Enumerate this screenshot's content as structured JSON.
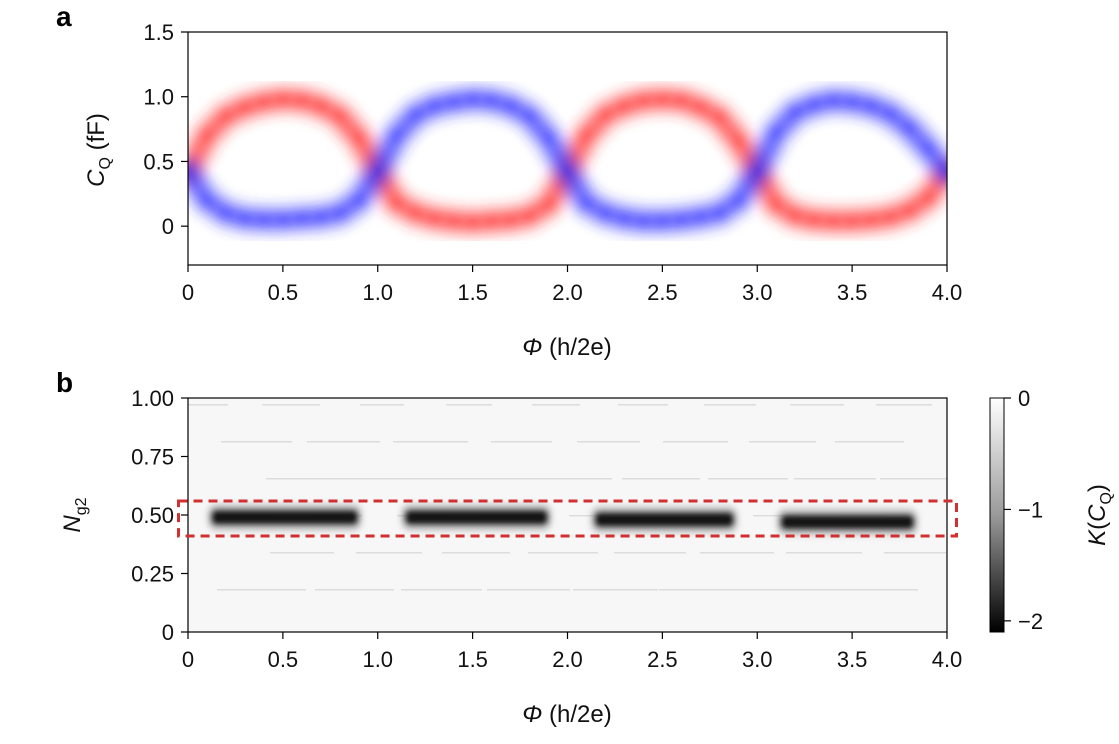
{
  "chart_data": [
    {
      "panel": "a",
      "type": "heatmap",
      "title": "",
      "xlabel_symbol": "Φ",
      "xlabel_unit": " (h/2e)",
      "ylabel_symbol": "C",
      "ylabel_subscript": "Q",
      "ylabel_unit": " (fF)",
      "xlim": [
        0,
        4.0
      ],
      "ylim": [
        -0.3,
        1.5
      ],
      "xticks": [
        "0",
        "0.5",
        "1.0",
        "1.5",
        "2.0",
        "2.5",
        "3.0",
        "3.5",
        "4.0"
      ],
      "xtick_values": [
        0,
        0.5,
        1.0,
        1.5,
        2.0,
        2.5,
        3.0,
        3.5,
        4.0
      ],
      "yticks": [
        "0",
        "0.5",
        "1.0",
        "1.5"
      ],
      "ytick_values": [
        0,
        0.5,
        1.0,
        1.5
      ],
      "series": [
        {
          "name": "red branch",
          "color": "#ff2a2a",
          "x": [
            0,
            0.1,
            0.2,
            0.3,
            0.4,
            0.5,
            0.6,
            0.7,
            0.8,
            0.9,
            1.0,
            1.1,
            1.2,
            1.3,
            1.4,
            1.5,
            1.6,
            1.7,
            1.8,
            1.9,
            2.0,
            2.1,
            2.2,
            2.3,
            2.4,
            2.5,
            2.6,
            2.7,
            2.8,
            2.9,
            3.0,
            3.1,
            3.2,
            3.3,
            3.4,
            3.5,
            3.6,
            3.7,
            3.8,
            3.9,
            4.0
          ],
          "y": [
            0.42,
            0.7,
            0.85,
            0.92,
            0.96,
            0.98,
            0.97,
            0.93,
            0.85,
            0.68,
            0.42,
            0.18,
            0.1,
            0.06,
            0.04,
            0.03,
            0.04,
            0.05,
            0.08,
            0.17,
            0.42,
            0.7,
            0.86,
            0.93,
            0.97,
            0.98,
            0.97,
            0.92,
            0.84,
            0.66,
            0.42,
            0.17,
            0.08,
            0.05,
            0.04,
            0.04,
            0.05,
            0.07,
            0.12,
            0.22,
            0.42
          ]
        },
        {
          "name": "blue branch",
          "color": "#2a2aff",
          "x": [
            0,
            0.1,
            0.2,
            0.3,
            0.4,
            0.5,
            0.6,
            0.7,
            0.8,
            0.9,
            1.0,
            1.1,
            1.2,
            1.3,
            1.4,
            1.5,
            1.6,
            1.7,
            1.8,
            1.9,
            2.0,
            2.1,
            2.2,
            2.3,
            2.4,
            2.5,
            2.6,
            2.7,
            2.8,
            2.9,
            3.0,
            3.1,
            3.2,
            3.3,
            3.4,
            3.5,
            3.6,
            3.7,
            3.8,
            3.9,
            4.0
          ],
          "y": [
            0.42,
            0.2,
            0.1,
            0.06,
            0.05,
            0.05,
            0.06,
            0.07,
            0.1,
            0.2,
            0.42,
            0.7,
            0.86,
            0.93,
            0.96,
            0.98,
            0.97,
            0.93,
            0.85,
            0.68,
            0.42,
            0.18,
            0.1,
            0.06,
            0.04,
            0.04,
            0.05,
            0.07,
            0.1,
            0.2,
            0.42,
            0.72,
            0.88,
            0.94,
            0.97,
            0.96,
            0.93,
            0.87,
            0.76,
            0.6,
            0.42
          ]
        }
      ]
    },
    {
      "panel": "b",
      "type": "heatmap",
      "title": "",
      "xlabel_symbol": "Φ",
      "xlabel_unit": " (h/2e)",
      "ylabel_symbol": "N",
      "ylabel_subscript": "g2",
      "xlim": [
        0,
        4.0
      ],
      "ylim": [
        0,
        1.0
      ],
      "xticks": [
        "0",
        "0.5",
        "1.0",
        "1.5",
        "2.0",
        "2.5",
        "3.0",
        "3.5",
        "4.0"
      ],
      "xtick_values": [
        0,
        0.5,
        1.0,
        1.5,
        2.0,
        2.5,
        3.0,
        3.5,
        4.0
      ],
      "yticks": [
        "0",
        "0.25",
        "0.50",
        "0.75",
        "1.00"
      ],
      "ytick_values": [
        0,
        0.25,
        0.5,
        0.75,
        1.0
      ],
      "colorbar": {
        "label_symbol": "K",
        "label_inner": "C",
        "label_subscript": "Q",
        "range": [
          -2.1,
          0
        ],
        "ticks": [
          "0",
          "−1",
          "−2"
        ],
        "tick_values": [
          0,
          -1,
          -2
        ]
      },
      "dark_segments": [
        {
          "x_start": 0.1,
          "x_end": 0.92,
          "ng2": 0.49,
          "K": -1.9
        },
        {
          "x_start": 1.12,
          "x_end": 1.92,
          "ng2": 0.49,
          "K": -1.9
        },
        {
          "x_start": 2.12,
          "x_end": 2.9,
          "ng2": 0.48,
          "K": -1.9
        },
        {
          "x_start": 3.1,
          "x_end": 3.85,
          "ng2": 0.47,
          "K": -1.9
        }
      ],
      "highlight_box": {
        "x_range": [
          -0.05,
          4.05
        ],
        "ng2_range": [
          0.41,
          0.56
        ],
        "color": "#d03030"
      }
    }
  ]
}
